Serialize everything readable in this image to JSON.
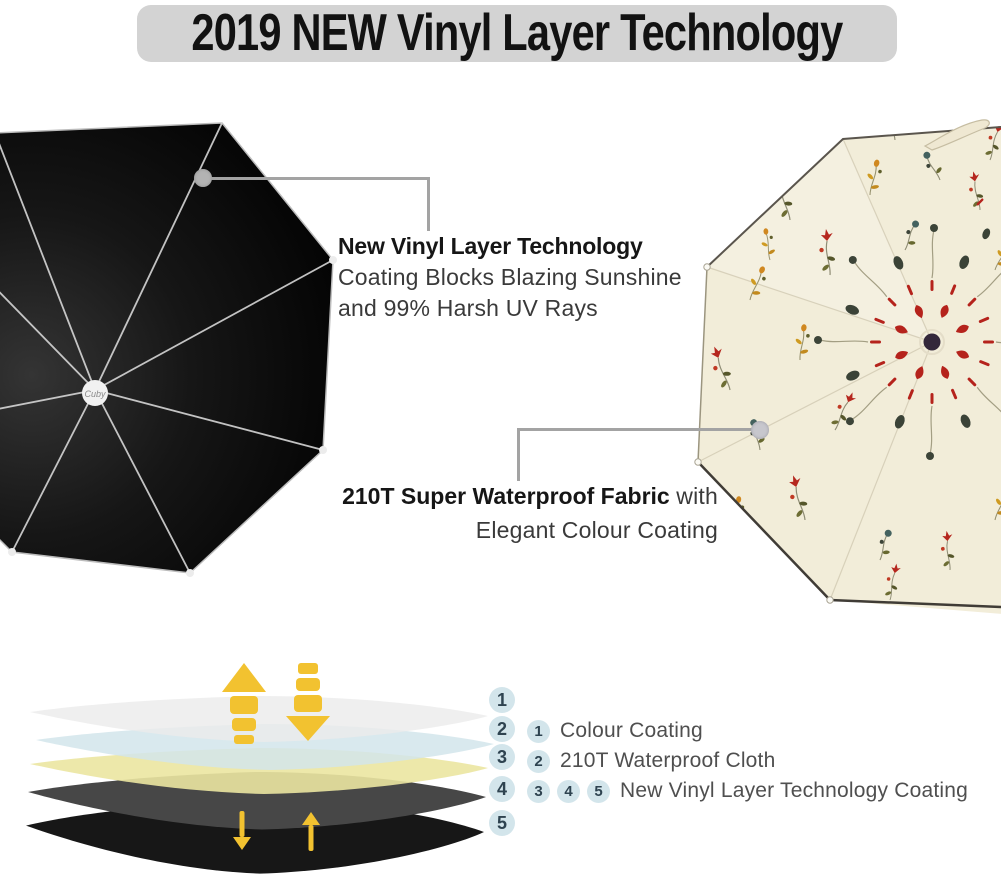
{
  "banner": {
    "title": "2019 NEW Vinyl Layer Technology"
  },
  "callouts": {
    "vinyl": {
      "heading": "New Vinyl Layer Technology",
      "body_line1": "Coating Blocks Blazing Sunshine",
      "body_line2": "and 99% Harsh UV Rays"
    },
    "fabric": {
      "bold": "210T Super Waterproof Fabric",
      "regular": " with",
      "line2": "Elegant Colour Coating"
    }
  },
  "umbrellas": {
    "black": {
      "logo_text": "Cuby",
      "canopy_color": "#0d0d0d",
      "rib_color": "#d6d6d6"
    },
    "floral": {
      "fabric_color": "#f2edd9",
      "flower_red": "#b5271e",
      "bud_orange": "#d08820",
      "leaf_olive": "#6b6b33",
      "accent_teal": "#44625f",
      "center_dark": "#33273a"
    }
  },
  "layer_diagram": {
    "badge_numbers": [
      "1",
      "2",
      "3",
      "4",
      "5"
    ],
    "badge_bg": "#d3e5eb",
    "arrow_color": "#f2c230",
    "layers": [
      {
        "number": "1",
        "color": "#ebebeb"
      },
      {
        "number": "2",
        "color": "#d2e5eb"
      },
      {
        "number": "3",
        "color": "#ebe6a1"
      },
      {
        "number": "4",
        "color": "#474747"
      },
      {
        "number": "5",
        "color": "#171717"
      }
    ],
    "legend": [
      {
        "numbers": [
          "1"
        ],
        "label": "Colour Coating"
      },
      {
        "numbers": [
          "2"
        ],
        "label": "210T Waterproof Cloth"
      },
      {
        "numbers": [
          "3",
          "4",
          "5"
        ],
        "label": "New Vinyl Layer Technology Coating"
      }
    ]
  }
}
